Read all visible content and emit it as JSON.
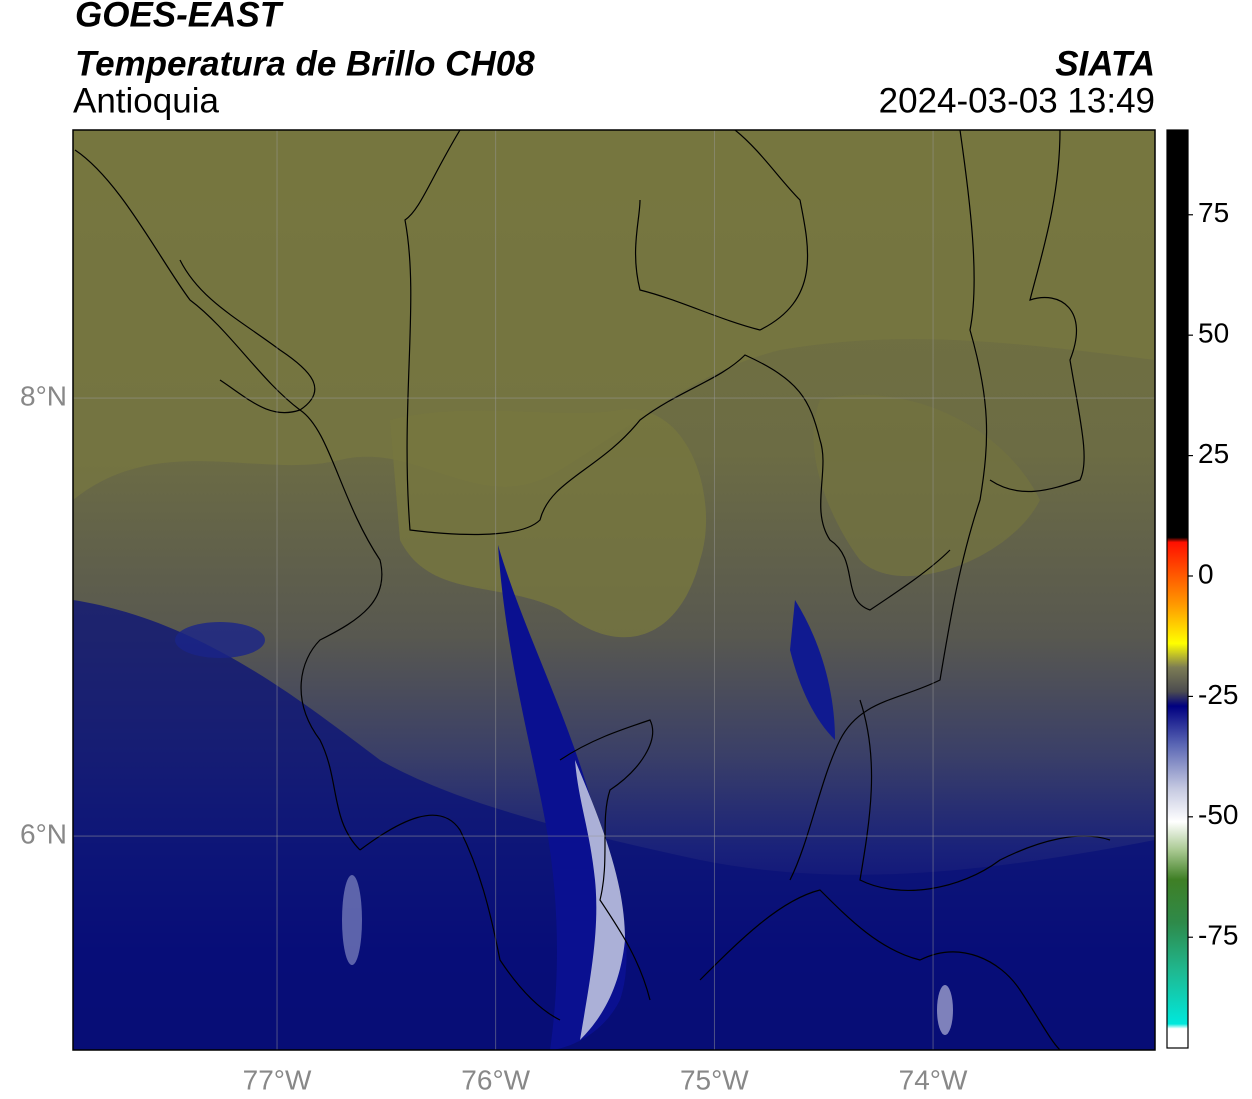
{
  "header": {
    "title": "GOES-EAST",
    "subtitle": "Temperatura de Brillo CH08",
    "region": "Antioquia",
    "source": "SIATA",
    "datetime": "2024-03-03 13:49"
  },
  "map": {
    "xlim": [
      -77.933,
      -72.985
    ],
    "ylim": [
      5.023,
      9.224
    ],
    "xticks": [
      {
        "value": -77,
        "label": "77°W"
      },
      {
        "value": -76,
        "label": "76°W"
      },
      {
        "value": -75,
        "label": "75°W"
      },
      {
        "value": -74,
        "label": "74°W"
      }
    ],
    "yticks": [
      {
        "value": 6,
        "label": "6°N"
      },
      {
        "value": 8,
        "label": "8°N"
      }
    ],
    "grid": true
  },
  "colorbar": {
    "lim": [
      -98,
      92.6
    ],
    "ticks": [
      -75,
      -50,
      -25,
      0,
      25,
      50,
      75
    ],
    "colormap": [
      {
        "value": -98,
        "color": "#ffffff"
      },
      {
        "value": -94,
        "color": "#ffffff"
      },
      {
        "value": -93,
        "color": "#00e8dc"
      },
      {
        "value": -82,
        "color": "#1fb890"
      },
      {
        "value": -72,
        "color": "#2e8a4a"
      },
      {
        "value": -63,
        "color": "#3f7f25"
      },
      {
        "value": -57,
        "color": "#a8c890"
      },
      {
        "value": -51,
        "color": "#ffffff"
      },
      {
        "value": -44,
        "color": "#c4c8e0"
      },
      {
        "value": -35,
        "color": "#5a66b4"
      },
      {
        "value": -27,
        "color": "#000080"
      },
      {
        "value": -24,
        "color": "#4c4c50"
      },
      {
        "value": -19,
        "color": "#7c7c54"
      },
      {
        "value": -14,
        "color": "#ffff00"
      },
      {
        "value": -6,
        "color": "#ff9a00"
      },
      {
        "value": 7,
        "color": "#ff1000"
      },
      {
        "value": 8,
        "color": "#000000"
      },
      {
        "value": 92.6,
        "color": "#000000"
      }
    ]
  }
}
